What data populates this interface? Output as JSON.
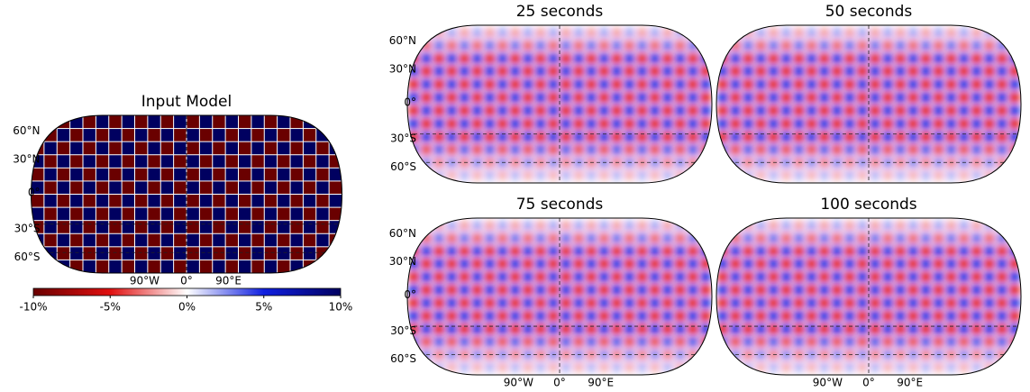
{
  "panels": [
    {
      "title": "Input Model",
      "lat_labels": [
        "60°N",
        "30°N",
        "0°",
        "30°S",
        "60°S"
      ],
      "lon_labels": [
        "90°W",
        "0°",
        "90°E"
      ]
    },
    {
      "title": "25 seconds",
      "lat_labels": [
        "60°N",
        "30°N",
        "0°",
        "30°S",
        "60°S"
      ]
    },
    {
      "title": "50 seconds"
    },
    {
      "title": "75 seconds",
      "lat_labels": [
        "60°N",
        "30°N",
        "0°",
        "30°S",
        "60°S"
      ],
      "lon_labels": [
        "90°W",
        "0°",
        "90°E"
      ]
    },
    {
      "title": "100 seconds",
      "lon_labels": [
        "90°W",
        "0°",
        "90°E"
      ]
    }
  ],
  "colorbar": {
    "lim": [
      -10,
      10
    ],
    "ticks": [
      {
        "value": -10,
        "label": "-10%"
      },
      {
        "value": -5,
        "label": "-5%"
      },
      {
        "value": 0,
        "label": "0%"
      },
      {
        "value": 5,
        "label": "5%"
      },
      {
        "value": 10,
        "label": "10%"
      }
    ],
    "colors": [
      "#6a0000",
      "#e01010",
      "#ffffff",
      "#1020e0",
      "#000060"
    ]
  }
}
